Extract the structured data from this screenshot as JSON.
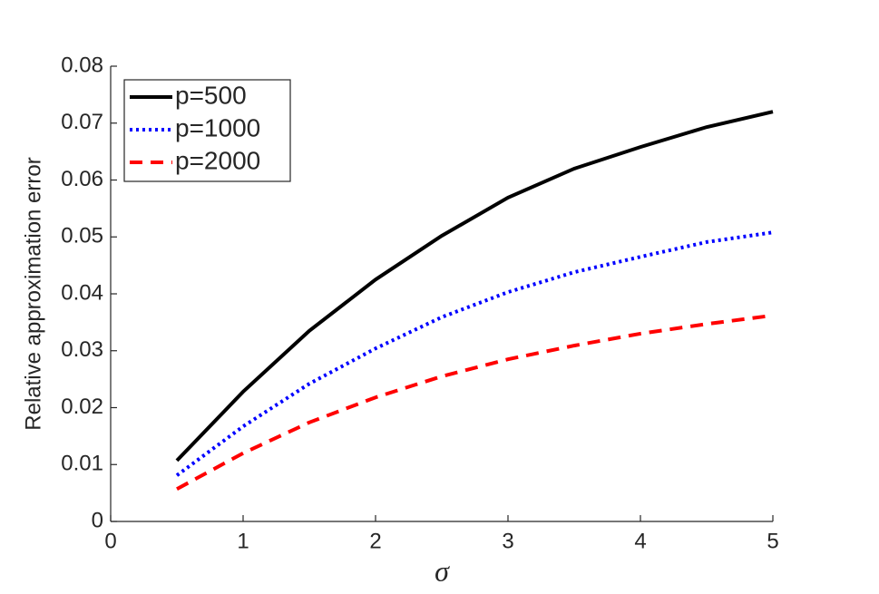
{
  "chart_data": {
    "type": "line",
    "xlabel": "σ",
    "ylabel": "Relative approximation error",
    "x": [
      0.5,
      1,
      1.5,
      2,
      2.5,
      3,
      3.5,
      4,
      4.5,
      5
    ],
    "series": [
      {
        "name": "p=500",
        "color": "#000000",
        "linestyle": "solid",
        "values": [
          0.0107,
          0.0228,
          0.0335,
          0.0425,
          0.0502,
          0.0569,
          0.062,
          0.0658,
          0.0693,
          0.072
        ]
      },
      {
        "name": "p=1000",
        "color": "#0000ff",
        "linestyle": "dotted",
        "values": [
          0.0081,
          0.0167,
          0.0242,
          0.0304,
          0.0359,
          0.0403,
          0.0438,
          0.0465,
          0.0491,
          0.0508
        ]
      },
      {
        "name": "p=2000",
        "color": "#ff0000",
        "linestyle": "dashed",
        "values": [
          0.0057,
          0.012,
          0.0174,
          0.0218,
          0.0255,
          0.0285,
          0.0309,
          0.033,
          0.0347,
          0.0362
        ]
      }
    ],
    "xlim": [
      0,
      5
    ],
    "xticks": [
      0,
      1,
      2,
      3,
      4,
      5
    ],
    "ylim": [
      0,
      0.08
    ],
    "yticks": [
      0,
      0.01,
      0.02,
      0.03,
      0.04,
      0.05,
      0.06,
      0.07,
      0.08
    ],
    "legend": "top-left",
    "grid": false
  }
}
